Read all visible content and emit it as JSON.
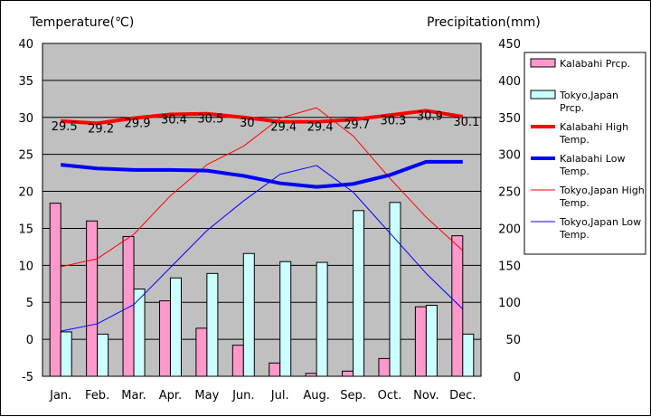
{
  "chart_data": {
    "type": "bar",
    "left_axis_title": "Temperature(℃)",
    "right_axis_title": "Precipitation(mm)",
    "categories": [
      "Jan.",
      "Feb.",
      "Mar.",
      "Apr.",
      "May",
      "Jun.",
      "Jul.",
      "Aug.",
      "Sep.",
      "Oct.",
      "Nov.",
      "Dec."
    ],
    "ylim_left": [
      -5,
      40
    ],
    "yticks_left": [
      -5,
      0,
      5,
      10,
      15,
      20,
      25,
      30,
      35,
      40
    ],
    "ylim_right": [
      0,
      450
    ],
    "yticks_right": [
      0,
      50,
      100,
      150,
      200,
      250,
      300,
      350,
      400,
      450
    ],
    "grid": true,
    "plot_background": "#c0c0c0",
    "legend_position": "right",
    "bar_series": [
      {
        "name": "Kalabahi Prcp.",
        "axis": "right",
        "color": "#ff99cc",
        "values": [
          234,
          210,
          189,
          102,
          65,
          42,
          18,
          4,
          7,
          24,
          94,
          190
        ]
      },
      {
        "name": "Tokyo,Japan Prcp.",
        "axis": "right",
        "color": "#ccffff",
        "values": [
          60,
          57,
          118,
          133,
          139,
          166,
          155,
          154,
          224,
          235,
          96,
          57
        ]
      }
    ],
    "line_series": [
      {
        "name": "Kalabahi High Temp.",
        "axis": "left",
        "color": "#ff0000",
        "width": 4,
        "values": [
          29.5,
          29.2,
          29.9,
          30.4,
          30.5,
          30.0,
          29.4,
          29.4,
          29.7,
          30.3,
          30.9,
          30.1
        ],
        "labels": [
          "29.5",
          "29.2",
          "29.9",
          "30.4",
          "30.5",
          "30",
          "29.4",
          "29.4",
          "29.7",
          "30.3",
          "30.9",
          "30.1"
        ]
      },
      {
        "name": "Kalabahi Low Temp.",
        "axis": "left",
        "color": "#0000ff",
        "width": 4,
        "values": [
          23.6,
          23.1,
          22.9,
          22.9,
          22.8,
          22.1,
          21.1,
          20.6,
          21.0,
          22.2,
          24.0,
          24.0
        ]
      },
      {
        "name": "Tokyo,Japan High Temp.",
        "axis": "left",
        "color": "#ff0000",
        "width": 1,
        "values": [
          9.8,
          10.9,
          14.2,
          19.4,
          23.6,
          26.1,
          29.9,
          31.3,
          27.5,
          21.8,
          16.5,
          12.0
        ]
      },
      {
        "name": "Tokyo,Japan Low Temp.",
        "axis": "left",
        "color": "#0000ff",
        "width": 1,
        "values": [
          1.1,
          2.1,
          4.7,
          9.7,
          14.7,
          18.7,
          22.3,
          23.5,
          19.9,
          14.4,
          8.9,
          4.1
        ]
      }
    ],
    "legend": [
      {
        "label": "Kalabahi Prcp.",
        "kind": "box",
        "color": "#ff99cc"
      },
      {
        "label": "Tokyo,Japan Prcp.",
        "kind": "box",
        "color": "#ccffff"
      },
      {
        "label": "Kalabahi High Temp.",
        "kind": "line",
        "color": "#ff0000",
        "width": 4
      },
      {
        "label": "Kalabahi Low Temp.",
        "kind": "line",
        "color": "#0000ff",
        "width": 4
      },
      {
        "label": "Tokyo,Japan High Temp.",
        "kind": "line",
        "color": "#ff0000",
        "width": 1
      },
      {
        "label": "Tokyo,Japan Low Temp.",
        "kind": "line",
        "color": "#0000ff",
        "width": 1
      }
    ]
  }
}
